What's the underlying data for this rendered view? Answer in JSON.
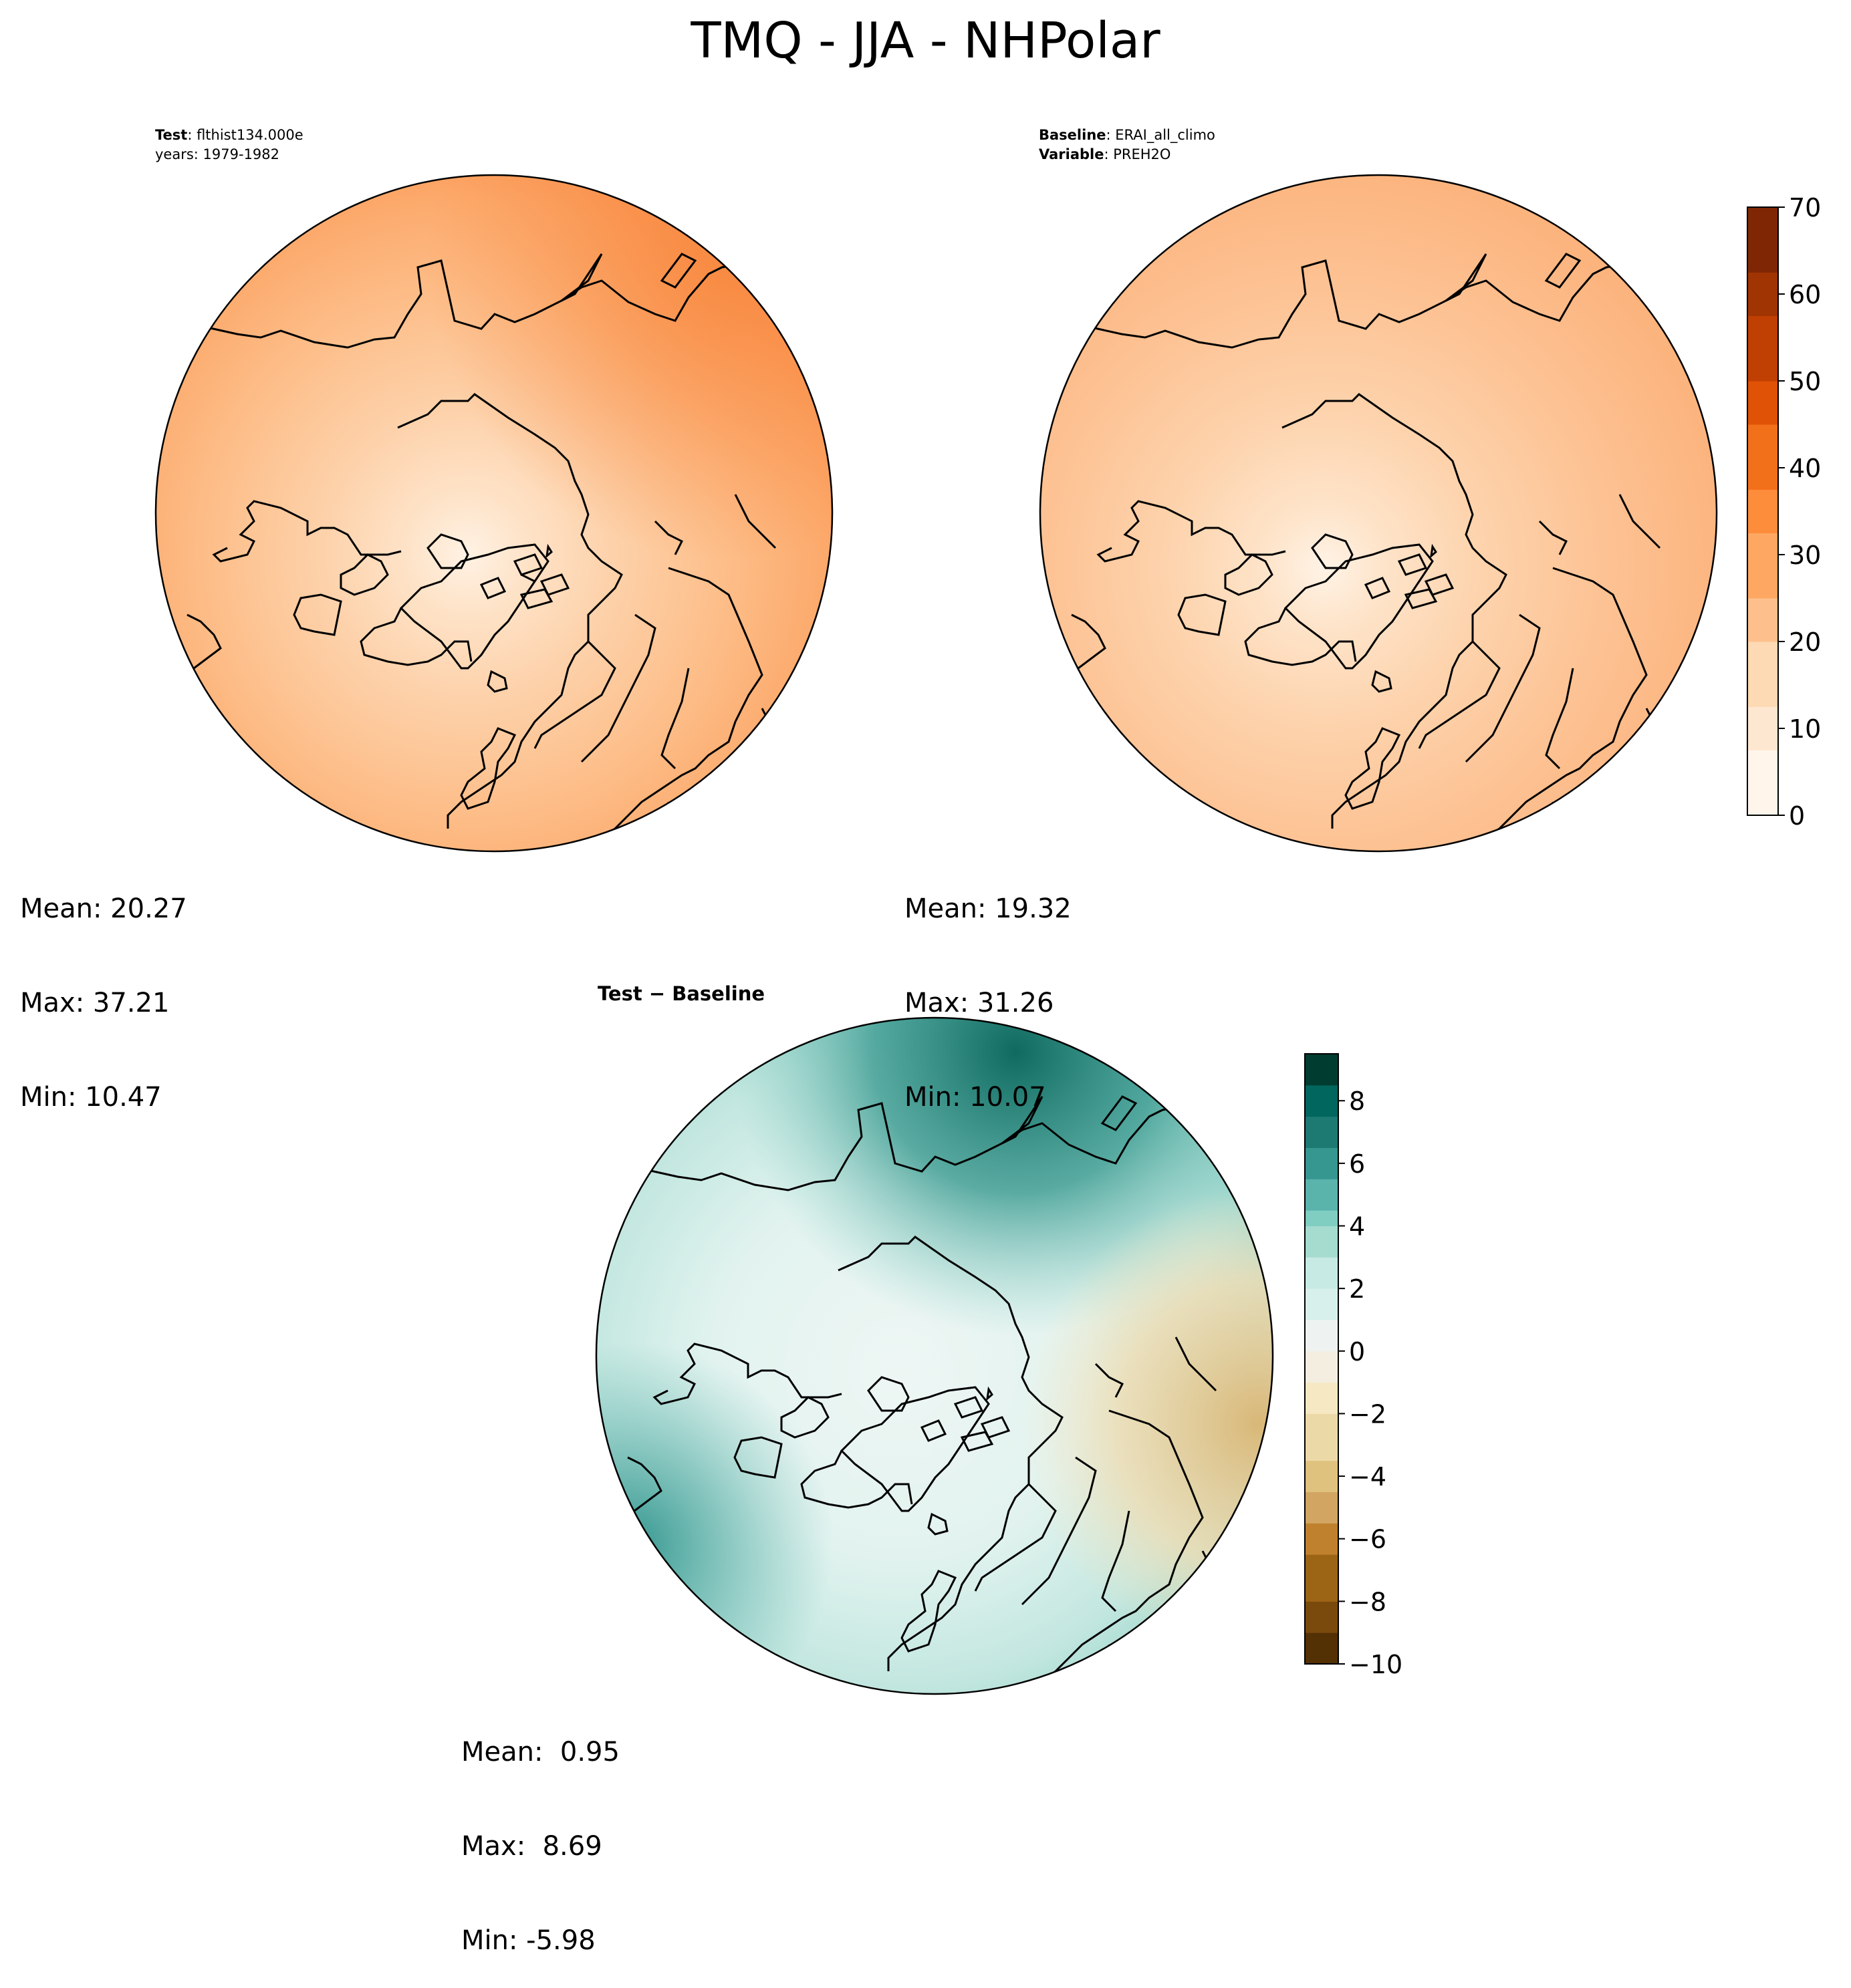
{
  "figure": {
    "title": "TMQ - JJA - NHPolar"
  },
  "test_panel": {
    "label_key_1": "Test",
    "label_value_1": ": flthist134.000e",
    "label_line_2": "years: 1979-1982",
    "mean": "Mean: 20.27",
    "max": "Max: 37.21",
    "min": "Min: 10.47"
  },
  "baseline_panel": {
    "label_key_1": "Baseline",
    "label_value_1": ": ERAI_all_climo",
    "label_key_2": "Variable",
    "label_value_2": ": PREH2O",
    "mean": "Mean: 19.32",
    "max": "Max: 31.26",
    "min": "Min: 10.07"
  },
  "diff_panel": {
    "title": "Test − Baseline",
    "mean": "Mean:  0.95",
    "max": "Max:  8.69",
    "min": "Min: -5.98"
  },
  "colorbar_main": {
    "min": 0,
    "max": 70,
    "ticks": [
      "0",
      "10",
      "20",
      "30",
      "40",
      "50",
      "60",
      "70"
    ],
    "colors": [
      "#fff5eb",
      "#fee7d1",
      "#fdd9b4",
      "#fdc08d",
      "#fda762",
      "#fd8c3b",
      "#f3701b",
      "#e05206",
      "#c03f02",
      "#a13403",
      "#7f2704"
    ]
  },
  "colorbar_diff": {
    "min": -10,
    "max": 9.5,
    "ticks": [
      "−10",
      "−8",
      "−6",
      "−4",
      "−2",
      "0",
      "2",
      "4",
      "6",
      "8"
    ],
    "tick_values": [
      -10,
      -8,
      -6,
      -4,
      -2,
      0,
      2,
      4,
      6,
      8
    ],
    "colors_neg": [
      "#543005",
      "#7a4a0c",
      "#9c6415",
      "#bf812d",
      "#d2a563",
      "#dfc27d",
      "#ecd9a8",
      "#f6e8c3",
      "#f3eee0"
    ],
    "colors_pos": [
      "#eef3f2",
      "#d8f0ec",
      "#c7eae5",
      "#a6dbd0",
      "#80cdc1",
      "#5ab4ac",
      "#35978f",
      "#1d7a72",
      "#01665e",
      "#003c30"
    ]
  }
}
